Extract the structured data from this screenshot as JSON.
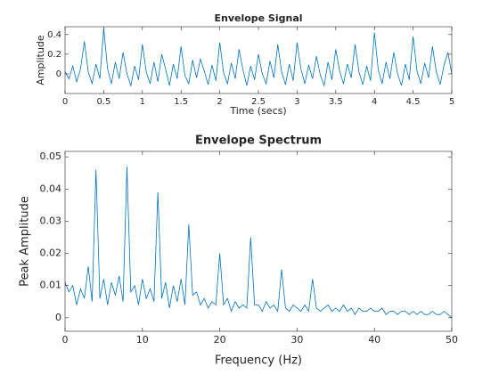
{
  "chart_data": [
    {
      "type": "line",
      "title": "Envelope Signal",
      "xlabel": "Time (secs)",
      "ylabel": "Amplitude",
      "color": "#0072bd",
      "x": [
        0,
        0.05,
        0.1,
        0.15,
        0.2,
        0.25,
        0.3,
        0.35,
        0.4,
        0.45,
        0.5,
        0.55,
        0.6,
        0.65,
        0.7,
        0.75,
        0.8,
        0.85,
        0.9,
        0.95,
        1,
        1.05,
        1.1,
        1.15,
        1.2,
        1.25,
        1.3,
        1.35,
        1.4,
        1.45,
        1.5,
        1.55,
        1.6,
        1.65,
        1.7,
        1.75,
        1.8,
        1.85,
        1.9,
        1.95,
        2,
        2.05,
        2.1,
        2.15,
        2.2,
        2.25,
        2.3,
        2.35,
        2.4,
        2.45,
        2.5,
        2.55,
        2.6,
        2.65,
        2.7,
        2.75,
        2.8,
        2.85,
        2.9,
        2.95,
        3,
        3.05,
        3.1,
        3.15,
        3.2,
        3.25,
        3.3,
        3.35,
        3.4,
        3.45,
        3.5,
        3.55,
        3.6,
        3.65,
        3.7,
        3.75,
        3.8,
        3.85,
        3.9,
        3.95,
        4,
        4.05,
        4.1,
        4.15,
        4.2,
        4.25,
        4.3,
        4.35,
        4.4,
        4.45,
        4.5,
        4.55,
        4.6,
        4.65,
        4.7,
        4.75,
        4.8,
        4.85,
        4.9,
        4.95,
        5
      ],
      "values": [
        0.02,
        -0.05,
        0.08,
        -0.08,
        0.05,
        0.33,
        0.02,
        -0.1,
        0.1,
        -0.05,
        0.46,
        0.05,
        -0.1,
        0.12,
        -0.05,
        0.22,
        0.0,
        -0.12,
        0.08,
        -0.06,
        0.3,
        0.02,
        -0.1,
        0.12,
        -0.08,
        0.2,
        0.05,
        -0.12,
        0.1,
        -0.05,
        0.28,
        -0.02,
        -0.1,
        0.14,
        -0.04,
        0.15,
        0.03,
        -0.11,
        0.09,
        -0.07,
        0.32,
        0.01,
        -0.1,
        0.11,
        -0.05,
        0.25,
        0.04,
        -0.12,
        0.08,
        -0.06,
        0.2,
        0.0,
        -0.1,
        0.13,
        -0.04,
        0.3,
        0.02,
        -0.11,
        0.1,
        -0.07,
        0.32,
        0.05,
        -0.1,
        0.09,
        -0.05,
        0.18,
        -0.01,
        -0.12,
        0.12,
        -0.06,
        0.25,
        0.03,
        -0.1,
        0.1,
        -0.04,
        0.3,
        0.02,
        -0.11,
        0.08,
        -0.07,
        0.42,
        0.04,
        -0.1,
        0.12,
        -0.05,
        0.22,
        0.0,
        -0.12,
        0.1,
        -0.06,
        0.38,
        0.03,
        -0.1,
        0.11,
        -0.04,
        0.28,
        0.02,
        -0.11,
        0.09,
        0.22,
        0.0
      ],
      "xlim": [
        0,
        5
      ],
      "xticks": [
        0,
        0.5,
        1,
        1.5,
        2,
        2.5,
        3,
        3.5,
        4,
        4.5,
        5
      ],
      "ylim": [
        -0.2,
        0.48
      ],
      "yticks": [
        0,
        0.2,
        0.4
      ]
    },
    {
      "type": "line",
      "title": "Envelope Spectrum",
      "xlabel": "Frequency (Hz)",
      "ylabel": "Peak Amplitude",
      "color": "#0072bd",
      "x": [
        0,
        0.5,
        1,
        1.5,
        2,
        2.5,
        3,
        3.5,
        4,
        4.5,
        5,
        5.5,
        6,
        6.5,
        7,
        7.5,
        8,
        8.5,
        9,
        9.5,
        10,
        10.5,
        11,
        11.5,
        12,
        12.5,
        13,
        13.5,
        14,
        14.5,
        15,
        15.5,
        16,
        16.5,
        17,
        17.5,
        18,
        18.5,
        19,
        19.5,
        20,
        20.5,
        21,
        21.5,
        22,
        22.5,
        23,
        23.5,
        24,
        24.5,
        25,
        25.5,
        26,
        26.5,
        27,
        27.5,
        28,
        28.5,
        29,
        29.5,
        30,
        30.5,
        31,
        31.5,
        32,
        32.5,
        33,
        33.5,
        34,
        34.5,
        35,
        35.5,
        36,
        36.5,
        37,
        37.5,
        38,
        38.5,
        39,
        39.5,
        40,
        40.5,
        41,
        41.5,
        42,
        42.5,
        43,
        43.5,
        44,
        44.5,
        45,
        45.5,
        46,
        46.5,
        47,
        47.5,
        48,
        48.5,
        49,
        49.5,
        50
      ],
      "values": [
        0.011,
        0.008,
        0.01,
        0.004,
        0.009,
        0.006,
        0.016,
        0.005,
        0.046,
        0.006,
        0.012,
        0.004,
        0.011,
        0.007,
        0.013,
        0.005,
        0.047,
        0.008,
        0.01,
        0.004,
        0.012,
        0.006,
        0.009,
        0.005,
        0.039,
        0.006,
        0.011,
        0.003,
        0.01,
        0.005,
        0.012,
        0.004,
        0.029,
        0.007,
        0.008,
        0.004,
        0.006,
        0.003,
        0.005,
        0.004,
        0.02,
        0.004,
        0.006,
        0.002,
        0.005,
        0.003,
        0.004,
        0.003,
        0.025,
        0.004,
        0.004,
        0.002,
        0.005,
        0.003,
        0.004,
        0.002,
        0.015,
        0.003,
        0.002,
        0.004,
        0.003,
        0.002,
        0.004,
        0.002,
        0.012,
        0.003,
        0.002,
        0.003,
        0.004,
        0.002,
        0.003,
        0.002,
        0.004,
        0.002,
        0.003,
        0.001,
        0.003,
        0.002,
        0.002,
        0.003,
        0.002,
        0.002,
        0.003,
        0.001,
        0.002,
        0.002,
        0.001,
        0.002,
        0.002,
        0.001,
        0.002,
        0.001,
        0.002,
        0.001,
        0.001,
        0.002,
        0.001,
        0.001,
        0.002,
        0.001,
        0.0
      ],
      "xlim": [
        0,
        50
      ],
      "xticks": [
        0,
        10,
        20,
        30,
        40,
        50
      ],
      "ylim": [
        -0.0042,
        0.0517
      ],
      "yticks": [
        0,
        0.01,
        0.02,
        0.03,
        0.04,
        0.05
      ]
    }
  ]
}
